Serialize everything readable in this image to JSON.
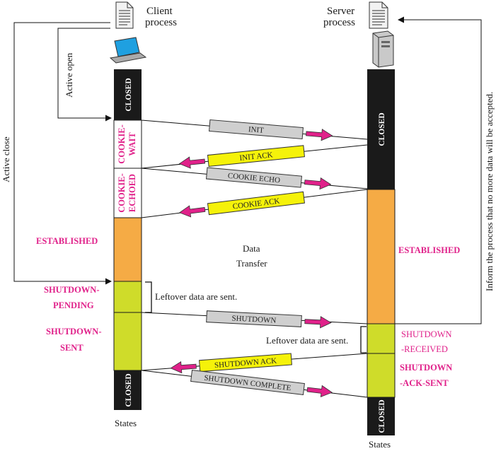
{
  "client": {
    "title_line1": "Client",
    "title_line2": "process",
    "states_label": "States"
  },
  "server": {
    "title_line1": "Server",
    "title_line2": "process",
    "states_label": "States"
  },
  "side_labels": {
    "active_open": "Active open",
    "active_close": "Active close",
    "inform": "Inform the process that no more data will be accepted."
  },
  "client_states": {
    "closed_top": "CLOSED",
    "cookie_wait": [
      "COOKIE-",
      "WAIT"
    ],
    "cookie_echoed": [
      "COOKIE-",
      "ECHOED"
    ],
    "established": "ESTABLISHED",
    "shutdown_pending": [
      "SHUTDOWN-",
      "PENDING"
    ],
    "shutdown_sent": [
      "SHUTDOWN-",
      "SENT"
    ],
    "closed_bottom": "CLOSED"
  },
  "server_states": {
    "closed_top": "CLOSED",
    "established": "ESTABLISHED",
    "shutdown_received": [
      "SHUTDOWN",
      "-RECEIVED"
    ],
    "shutdown_ack_sent": [
      "SHUTDOWN",
      "-ACK-SENT"
    ],
    "closed_bottom": "CLOSED"
  },
  "messages": {
    "init": "INIT",
    "init_ack": "INIT ACK",
    "cookie_echo": "COOKIE ECHO",
    "cookie_ack": "COOKIE ACK",
    "shutdown": "SHUTDOWN",
    "shutdown_ack": "SHUTDOWN ACK",
    "shutdown_complete": "SHUTDOWN COMPLETE"
  },
  "notes": {
    "data_transfer": [
      "Data",
      "Transfer"
    ],
    "leftover_client": "Leftover data are sent.",
    "leftover_server": "Leftover data are sent."
  },
  "colors": {
    "closed": "#1a1a1a",
    "established": "#f5ab45",
    "shutdown": "#cfdc2a",
    "label_magenta": "#e0218a",
    "arrow_magenta": "#e0218a",
    "msg_gray": "#cfcfcf",
    "msg_yellow": "#f5f20a"
  }
}
